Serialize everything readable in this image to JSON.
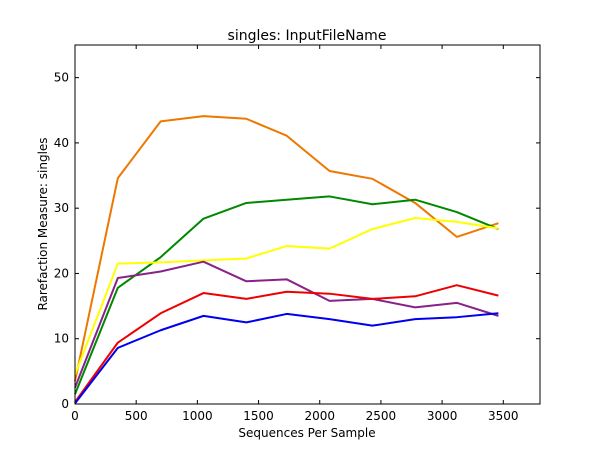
{
  "chart_data": {
    "type": "line",
    "title": "singles: InputFileName",
    "xlabel": "Sequences Per Sample",
    "ylabel": "Rarefaction Measure: singles",
    "xlim": [
      0,
      3800
    ],
    "ylim": [
      0,
      55
    ],
    "xticks": [
      0,
      500,
      1000,
      1500,
      2000,
      2500,
      3000,
      3500
    ],
    "yticks": [
      0,
      10,
      20,
      30,
      40,
      50
    ],
    "grid": false,
    "x": [
      0,
      350,
      700,
      1050,
      1400,
      1730,
      2080,
      2430,
      2780,
      3120,
      3460
    ],
    "series": [
      {
        "color": "#ee7700",
        "values": [
          3.5,
          34.6,
          43.3,
          44.1,
          43.7,
          41.1,
          35.7,
          34.5,
          30.8,
          25.6,
          27.7
        ]
      },
      {
        "color": "#008800",
        "values": [
          1.5,
          17.8,
          22.5,
          28.4,
          30.8,
          31.3,
          31.8,
          30.6,
          31.3,
          29.4,
          26.8
        ]
      },
      {
        "color": "#ffff00",
        "values": [
          4.5,
          21.5,
          21.7,
          22.0,
          22.3,
          24.2,
          23.8,
          26.8,
          28.5,
          27.9,
          26.9
        ]
      },
      {
        "color": "#882288",
        "values": [
          2.5,
          19.3,
          20.3,
          21.8,
          18.8,
          19.1,
          15.8,
          16.1,
          14.8,
          15.5,
          13.5
        ]
      },
      {
        "color": "#ee0000",
        "values": [
          0.3,
          9.4,
          13.9,
          17.0,
          16.1,
          17.2,
          16.9,
          16.1,
          16.5,
          18.2,
          16.6
        ]
      },
      {
        "color": "#0000ee",
        "values": [
          0.1,
          8.6,
          11.3,
          13.5,
          12.5,
          13.8,
          13.0,
          12.0,
          13.0,
          13.3,
          13.9
        ]
      }
    ]
  }
}
